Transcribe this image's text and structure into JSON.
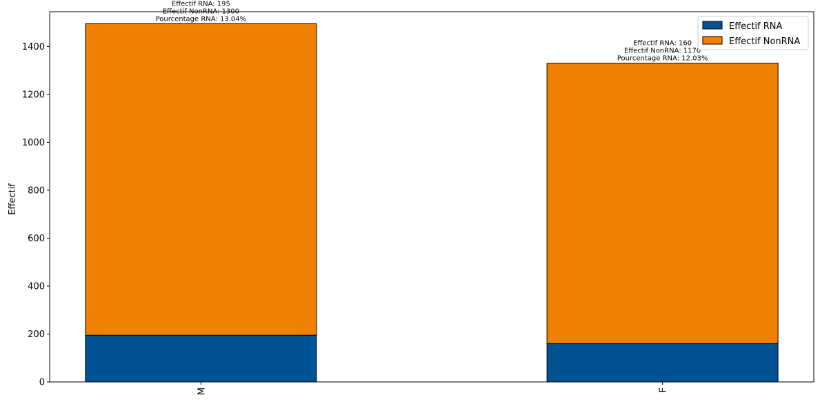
{
  "chart_data": {
    "type": "bar",
    "stacked": true,
    "categories": [
      "M",
      "F"
    ],
    "series": [
      {
        "name": "Effectif RNA",
        "values": [
          195,
          160
        ],
        "color": "#005293"
      },
      {
        "name": "Effectif NonRNA",
        "values": [
          1300,
          1170
        ],
        "color": "#F08000"
      }
    ],
    "annotations": [
      [
        "Effectif RNA: 195",
        "Effectif NonRNA: 1300",
        "Pourcentage RNA: 13.04%"
      ],
      [
        "Effectif RNA: 160",
        "Effectif NonRNA: 1170",
        "Pourcentage RNA: 12.03%"
      ]
    ],
    "title": "",
    "xlabel": "",
    "ylabel": "Effectif",
    "ylim": [
      0,
      1545
    ],
    "yticks": [
      0,
      200,
      400,
      600,
      800,
      1000,
      1200,
      1400
    ],
    "grid": false,
    "legend_position": "top-right",
    "x_tick_rotation": "vertical"
  }
}
